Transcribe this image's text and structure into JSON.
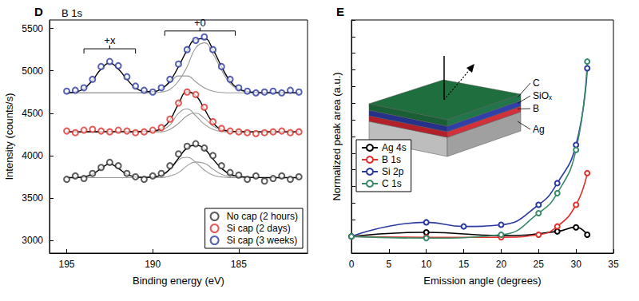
{
  "chart_data": [
    {
      "type": "scatter",
      "label": "D",
      "title": "B 1s",
      "xlabel": "Binding energy (eV)",
      "ylabel": "Intensity (counts/s)",
      "xlim": [
        196,
        181
      ],
      "xticks": [
        195,
        190,
        185
      ],
      "ylim": [
        2850,
        5600
      ],
      "yticks": [
        3000,
        3500,
        4000,
        4500,
        5000,
        5500
      ],
      "grid": false,
      "legend": "lower right",
      "x": [
        195,
        194.5,
        194,
        193.5,
        193,
        192.5,
        192,
        191.5,
        191,
        190.5,
        190,
        189.5,
        189,
        188.5,
        188,
        187.5,
        187,
        186.5,
        186,
        185.5,
        185,
        184.5,
        184,
        183.5,
        183,
        182.5,
        182,
        181.5
      ],
      "series": [
        {
          "name": "No cap (2 hours)",
          "type": "scatter",
          "marker": "open_circle",
          "color": "#333333",
          "values": [
            3720,
            3760,
            3730,
            3790,
            3860,
            3920,
            3880,
            3790,
            3750,
            3720,
            3760,
            3790,
            3880,
            4020,
            4110,
            4140,
            4090,
            4000,
            3880,
            3800,
            3770,
            3720,
            3760,
            3700,
            3730,
            3760,
            3720,
            3750
          ]
        },
        {
          "name": "Si cap (2 days)",
          "type": "scatter",
          "marker": "open_circle",
          "color": "#e0302b",
          "values": [
            4290,
            4270,
            4300,
            4310,
            4290,
            4280,
            4300,
            4290,
            4270,
            4280,
            4300,
            4330,
            4430,
            4620,
            4750,
            4720,
            4570,
            4400,
            4320,
            4290,
            4280,
            4270,
            4260,
            4270,
            4280,
            4290,
            4270,
            4280
          ]
        },
        {
          "name": "Si cap (3 weeks)",
          "type": "scatter",
          "marker": "open_circle",
          "color": "#2b3a9f",
          "values": [
            4760,
            4770,
            4800,
            4900,
            5050,
            5110,
            5060,
            4930,
            4820,
            4770,
            4750,
            4800,
            4900,
            5080,
            5250,
            5360,
            5400,
            5250,
            5050,
            4900,
            4800,
            4760,
            4740,
            4750,
            4760,
            4740,
            4770,
            4750
          ]
        },
        {
          "type": "line",
          "color": "#999999",
          "values": [
            3740,
            3740,
            3740,
            3740,
            3740,
            3740,
            3740,
            3740,
            3740,
            3740,
            3745,
            3770,
            3840,
            3950,
            3980,
            3920,
            3830,
            3770,
            3748,
            3740,
            3740,
            3740,
            3740,
            3740,
            3740,
            3740,
            3740,
            3740
          ]
        },
        {
          "type": "line",
          "color": "#999999",
          "values": [
            3740,
            3740,
            3740,
            3740,
            3740,
            3740,
            3740,
            3740,
            3740,
            3740,
            3740,
            3740,
            3760,
            3800,
            3880,
            3925,
            3910,
            3840,
            3780,
            3750,
            3740,
            3740,
            3740,
            3740,
            3740,
            3740,
            3740,
            3740
          ]
        },
        {
          "type": "line",
          "color": "#000000",
          "values": [
            3740,
            3742,
            3750,
            3780,
            3850,
            3900,
            3850,
            3780,
            3750,
            3745,
            3750,
            3770,
            3840,
            3970,
            4090,
            4120,
            4080,
            3960,
            3850,
            3780,
            3755,
            3745,
            3742,
            3740,
            3740,
            3740,
            3740,
            3740
          ]
        },
        {
          "type": "line",
          "color": "#999999",
          "values": [
            4280,
            4280,
            4280,
            4280,
            4280,
            4280,
            4280,
            4280,
            4280,
            4280,
            4280,
            4300,
            4360,
            4500,
            4550,
            4470,
            4370,
            4310,
            4285,
            4280,
            4280,
            4280,
            4280,
            4280,
            4280,
            4280,
            4280,
            4280
          ]
        },
        {
          "type": "line",
          "color": "#999999",
          "values": [
            4280,
            4280,
            4280,
            4280,
            4280,
            4280,
            4280,
            4280,
            4280,
            4280,
            4280,
            4280,
            4310,
            4380,
            4470,
            4500,
            4440,
            4350,
            4300,
            4285,
            4280,
            4280,
            4280,
            4280,
            4280,
            4280,
            4280,
            4280
          ]
        },
        {
          "type": "line",
          "color": "#000000",
          "values": [
            4280,
            4280,
            4280,
            4282,
            4282,
            4283,
            4283,
            4282,
            4282,
            4285,
            4290,
            4320,
            4420,
            4610,
            4750,
            4710,
            4550,
            4390,
            4310,
            4290,
            4283,
            4281,
            4280,
            4280,
            4280,
            4280,
            4280,
            4280
          ]
        },
        {
          "type": "line",
          "color": "#999999",
          "values": [
            4740,
            4740,
            4740,
            4740,
            4740,
            4740,
            4740,
            4740,
            4740,
            4740,
            4750,
            4790,
            4860,
            4940,
            4940,
            4870,
            4800,
            4760,
            4745,
            4740,
            4740,
            4740,
            4740,
            4740,
            4740,
            4740,
            4740,
            4740
          ]
        },
        {
          "type": "line",
          "color": "#999999",
          "values": [
            4740,
            4740,
            4740,
            4740,
            4740,
            4740,
            4740,
            4740,
            4740,
            4740,
            4740,
            4750,
            4780,
            4880,
            5050,
            5270,
            5330,
            5200,
            5010,
            4850,
            4780,
            4750,
            4740,
            4740,
            4740,
            4740,
            4740,
            4740
          ]
        },
        {
          "type": "line",
          "color": "#000000",
          "values": [
            4740,
            4750,
            4790,
            4890,
            5020,
            5090,
            5020,
            4900,
            4800,
            4760,
            4755,
            4790,
            4880,
            5050,
            5240,
            5370,
            5380,
            5250,
            5050,
            4880,
            4790,
            4755,
            4745,
            4740,
            4740,
            4740,
            4740,
            4740
          ]
        }
      ],
      "annotations": [
        {
          "text": "+x",
          "x_start": 194,
          "x_end": 191,
          "y": 5260
        },
        {
          "text": "+0",
          "x_start": 189.3,
          "x_end": 185.2,
          "y": 5470
        }
      ]
    },
    {
      "type": "line",
      "label": "E",
      "xlabel": "Emission angle (degrees)",
      "ylabel": "Normalized peak area (a.u.)",
      "xlim": [
        0,
        35
      ],
      "xticks": [
        0,
        5,
        10,
        15,
        20,
        25,
        30,
        35
      ],
      "ylim": [
        0,
        14
      ],
      "yticks": [
        0,
        1,
        2,
        3,
        4,
        5,
        6,
        7,
        8,
        9,
        10,
        11,
        12,
        13,
        14
      ],
      "tick_labels": "x",
      "grid": false,
      "legend": "center left",
      "marker": "open_circle",
      "series": [
        {
          "name": "Ag 4s",
          "color": "#000000",
          "x": [
            0,
            10,
            20,
            27.5,
            30,
            31.5
          ],
          "values": [
            1.0,
            1.25,
            1.05,
            1.3,
            1.55,
            1.1
          ]
        },
        {
          "name": "B 1s",
          "color": "#e0302b",
          "x": [
            0,
            10,
            20,
            25,
            27.5,
            30,
            31.5
          ],
          "values": [
            1.0,
            0.95,
            0.95,
            1.1,
            1.6,
            2.9,
            4.8
          ]
        },
        {
          "name": "Si 2p",
          "color": "#2b3a9f",
          "x": [
            0,
            10,
            15,
            20,
            25,
            27.5,
            30,
            31.5
          ],
          "values": [
            1.0,
            1.85,
            1.6,
            1.7,
            2.9,
            4.2,
            6.5,
            11.1
          ]
        },
        {
          "name": "C 1s",
          "color": "#3a8a6a",
          "x": [
            0,
            10,
            20,
            25,
            27.5,
            30,
            31.5
          ],
          "values": [
            1.0,
            0.9,
            1.1,
            2.4,
            3.6,
            6.2,
            11.5
          ]
        }
      ],
      "inset": {
        "layers": [
          "C",
          "SiOₓ",
          "B",
          "Ag"
        ]
      }
    }
  ]
}
